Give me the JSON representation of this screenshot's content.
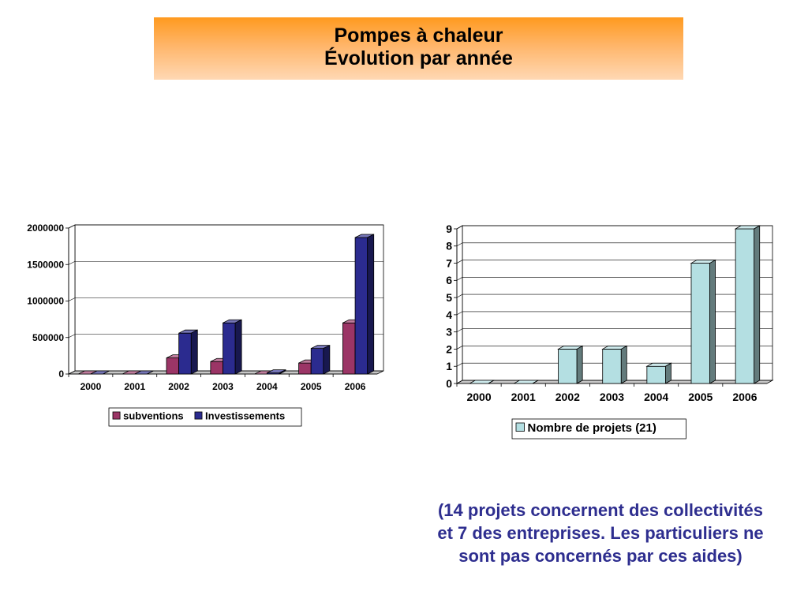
{
  "header": {
    "title_line1": "Pompes à chaleur",
    "title_line2": "Évolution par année"
  },
  "colors": {
    "header_gradient_top": "#ff9a1f",
    "header_gradient_bottom": "#ffd8b4",
    "subventions": "#9b3566",
    "investissements": "#2b2b8f",
    "projets": "#b4dfe2",
    "note_text": "#2e2e8f"
  },
  "chart_data": [
    {
      "type": "bar",
      "categories": [
        "2000",
        "2001",
        "2002",
        "2003",
        "2004",
        "2005",
        "2006"
      ],
      "series": [
        {
          "name": "subventions",
          "values": [
            0,
            0,
            220000,
            170000,
            0,
            150000,
            700000
          ]
        },
        {
          "name": "Investissements",
          "values": [
            0,
            0,
            560000,
            700000,
            15000,
            350000,
            1870000
          ]
        }
      ],
      "yticks": [
        "0",
        "500000",
        "1000000",
        "1500000",
        "2000000"
      ],
      "ylim": [
        0,
        2000000
      ],
      "grid": true,
      "legend": "bottom"
    },
    {
      "type": "bar",
      "categories": [
        "2000",
        "2001",
        "2002",
        "2003",
        "2004",
        "2005",
        "2006"
      ],
      "series": [
        {
          "name": "Nombre de projets (21)",
          "values": [
            0,
            0,
            2,
            2,
            1,
            7,
            9
          ]
        }
      ],
      "yticks": [
        "0",
        "1",
        "2",
        "3",
        "4",
        "5",
        "6",
        "7",
        "8",
        "9"
      ],
      "ylim": [
        0,
        9
      ],
      "grid": true,
      "legend": "bottom"
    }
  ],
  "footnote": {
    "line1": "(14 projets concernent des collectivités",
    "line2": "et 7 des entreprises. Les particuliers ne",
    "line3": "sont pas concernés par ces aides)"
  }
}
